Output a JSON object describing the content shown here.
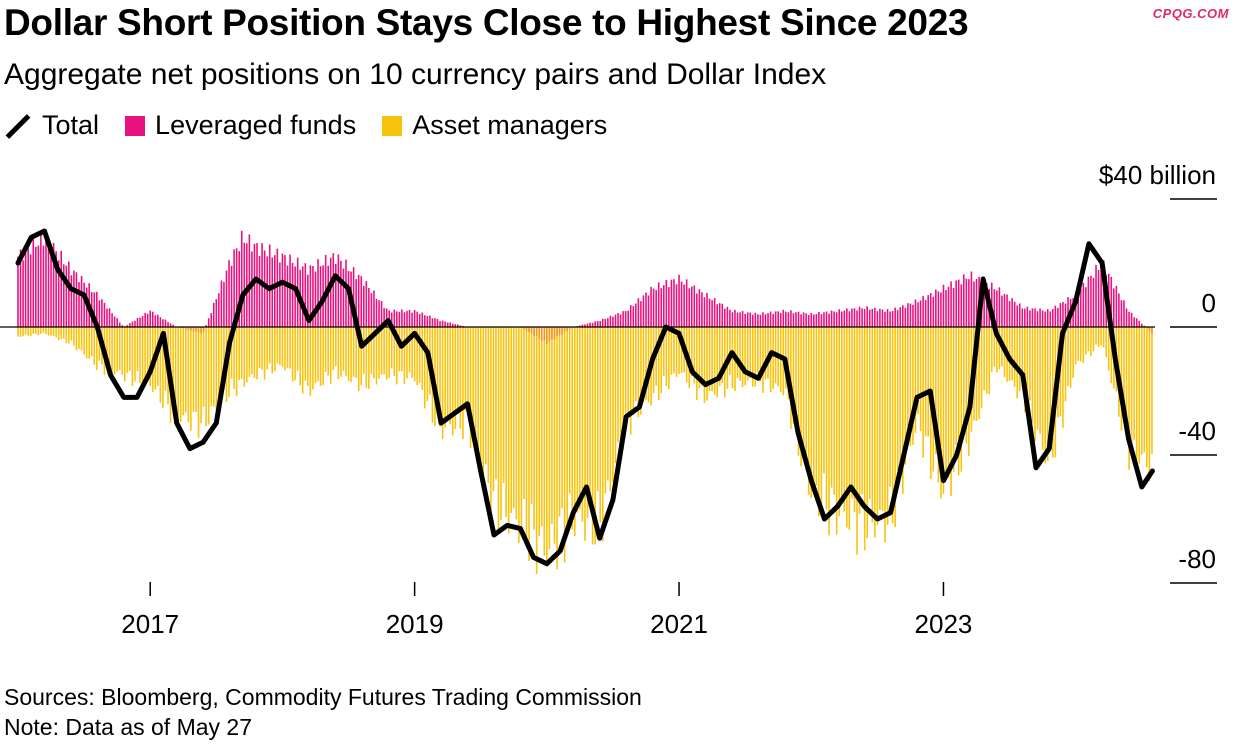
{
  "header": {
    "title": "Dollar Short Position Stays Close to Highest Since 2023",
    "subtitle": "Aggregate net positions on 10 currency pairs and Dollar Index",
    "watermark": "CPQG.COM"
  },
  "legend": {
    "total": "Total",
    "leveraged": "Leveraged funds",
    "asset": "Asset managers"
  },
  "colors": {
    "leveraged": "#e8117f",
    "asset": "#f9c20b",
    "overlap": "#f08c1c",
    "total": "#000000",
    "watermark": "#e0286a"
  },
  "footer": {
    "sources": "Sources: Bloomberg, Commodity Futures Trading Commission",
    "note": "Note: Data as of May 27"
  },
  "chart_data": {
    "type": "area",
    "title": "Dollar Short Position Stays Close to Highest Since 2023",
    "ylabel": "$40 billion",
    "ylim": [
      -88,
      40
    ],
    "yticks": [
      {
        "value": 40,
        "label": "$40 billion"
      },
      {
        "value": 0,
        "label": "0"
      },
      {
        "value": -40,
        "label": "-40"
      },
      {
        "value": -80,
        "label": "-80"
      }
    ],
    "xlim": [
      2016.0,
      2024.6
    ],
    "xticks": [
      {
        "value": 2017,
        "label": "2017"
      },
      {
        "value": 2019,
        "label": "2019"
      },
      {
        "value": 2021,
        "label": "2021"
      },
      {
        "value": 2023,
        "label": "2023"
      }
    ],
    "series": [
      {
        "name": "Total",
        "type": "line",
        "points": [
          [
            2016.0,
            20
          ],
          [
            2016.1,
            28
          ],
          [
            2016.2,
            30
          ],
          [
            2016.3,
            18
          ],
          [
            2016.4,
            12
          ],
          [
            2016.5,
            10
          ],
          [
            2016.6,
            0
          ],
          [
            2016.7,
            -15
          ],
          [
            2016.8,
            -22
          ],
          [
            2016.9,
            -22
          ],
          [
            2017.0,
            -14
          ],
          [
            2017.1,
            -2
          ],
          [
            2017.2,
            -30
          ],
          [
            2017.3,
            -38
          ],
          [
            2017.4,
            -36
          ],
          [
            2017.5,
            -30
          ],
          [
            2017.6,
            -5
          ],
          [
            2017.7,
            10
          ],
          [
            2017.8,
            15
          ],
          [
            2017.9,
            12
          ],
          [
            2018.0,
            14
          ],
          [
            2018.1,
            12
          ],
          [
            2018.2,
            2
          ],
          [
            2018.3,
            8
          ],
          [
            2018.4,
            16
          ],
          [
            2018.5,
            12
          ],
          [
            2018.6,
            -6
          ],
          [
            2018.7,
            -2
          ],
          [
            2018.8,
            2
          ],
          [
            2018.9,
            -6
          ],
          [
            2019.0,
            -2
          ],
          [
            2019.1,
            -8
          ],
          [
            2019.2,
            -30
          ],
          [
            2019.3,
            -27
          ],
          [
            2019.4,
            -24
          ],
          [
            2019.5,
            -45
          ],
          [
            2019.6,
            -65
          ],
          [
            2019.7,
            -62
          ],
          [
            2019.8,
            -63
          ],
          [
            2019.9,
            -72
          ],
          [
            2020.0,
            -74
          ],
          [
            2020.1,
            -70
          ],
          [
            2020.2,
            -58
          ],
          [
            2020.3,
            -50
          ],
          [
            2020.4,
            -66
          ],
          [
            2020.5,
            -54
          ],
          [
            2020.6,
            -28
          ],
          [
            2020.7,
            -25
          ],
          [
            2020.8,
            -10
          ],
          [
            2020.9,
            0
          ],
          [
            2021.0,
            -2
          ],
          [
            2021.1,
            -14
          ],
          [
            2021.2,
            -18
          ],
          [
            2021.3,
            -16
          ],
          [
            2021.4,
            -8
          ],
          [
            2021.5,
            -14
          ],
          [
            2021.6,
            -16
          ],
          [
            2021.7,
            -8
          ],
          [
            2021.8,
            -10
          ],
          [
            2021.9,
            -33
          ],
          [
            2022.0,
            -48
          ],
          [
            2022.1,
            -60
          ],
          [
            2022.2,
            -56
          ],
          [
            2022.3,
            -50
          ],
          [
            2022.4,
            -56
          ],
          [
            2022.5,
            -60
          ],
          [
            2022.6,
            -58
          ],
          [
            2022.7,
            -40
          ],
          [
            2022.8,
            -22
          ],
          [
            2022.9,
            -20
          ],
          [
            2023.0,
            -48
          ],
          [
            2023.1,
            -40
          ],
          [
            2023.2,
            -25
          ],
          [
            2023.3,
            15
          ],
          [
            2023.4,
            -2
          ],
          [
            2023.5,
            -10
          ],
          [
            2023.6,
            -15
          ],
          [
            2023.7,
            -44
          ],
          [
            2023.8,
            -38
          ],
          [
            2023.9,
            -2
          ],
          [
            2024.0,
            8
          ],
          [
            2024.1,
            26
          ],
          [
            2024.2,
            20
          ],
          [
            2024.3,
            -10
          ],
          [
            2024.4,
            -35
          ],
          [
            2024.5,
            -50
          ],
          [
            2024.58,
            -45
          ]
        ]
      },
      {
        "name": "Leveraged funds",
        "type": "bar",
        "points": [
          [
            2016.0,
            22
          ],
          [
            2016.2,
            28
          ],
          [
            2016.4,
            18
          ],
          [
            2016.6,
            10
          ],
          [
            2016.8,
            0
          ],
          [
            2017.0,
            5
          ],
          [
            2017.2,
            0
          ],
          [
            2017.4,
            -2
          ],
          [
            2017.6,
            20
          ],
          [
            2017.7,
            28
          ],
          [
            2017.8,
            25
          ],
          [
            2018.0,
            22
          ],
          [
            2018.2,
            18
          ],
          [
            2018.4,
            22
          ],
          [
            2018.6,
            15
          ],
          [
            2018.8,
            5
          ],
          [
            2019.0,
            5
          ],
          [
            2019.2,
            2
          ],
          [
            2019.4,
            0
          ],
          [
            2019.6,
            0
          ],
          [
            2019.8,
            0
          ],
          [
            2020.0,
            -5
          ],
          [
            2020.2,
            0
          ],
          [
            2020.4,
            2
          ],
          [
            2020.6,
            5
          ],
          [
            2020.8,
            12
          ],
          [
            2021.0,
            15
          ],
          [
            2021.2,
            10
          ],
          [
            2021.4,
            5
          ],
          [
            2021.6,
            4
          ],
          [
            2021.8,
            5
          ],
          [
            2022.0,
            4
          ],
          [
            2022.2,
            5
          ],
          [
            2022.4,
            6
          ],
          [
            2022.6,
            5
          ],
          [
            2022.8,
            8
          ],
          [
            2023.0,
            12
          ],
          [
            2023.2,
            16
          ],
          [
            2023.4,
            12
          ],
          [
            2023.6,
            6
          ],
          [
            2023.8,
            5
          ],
          [
            2024.0,
            10
          ],
          [
            2024.2,
            20
          ],
          [
            2024.4,
            5
          ],
          [
            2024.58,
            -2
          ]
        ]
      },
      {
        "name": "Asset managers",
        "type": "bar",
        "points": [
          [
            2016.0,
            -3
          ],
          [
            2016.2,
            -2
          ],
          [
            2016.4,
            -5
          ],
          [
            2016.6,
            -12
          ],
          [
            2016.8,
            -15
          ],
          [
            2017.0,
            -18
          ],
          [
            2017.2,
            -28
          ],
          [
            2017.4,
            -30
          ],
          [
            2017.6,
            -20
          ],
          [
            2017.8,
            -15
          ],
          [
            2018.0,
            -12
          ],
          [
            2018.2,
            -20
          ],
          [
            2018.4,
            -14
          ],
          [
            2018.6,
            -18
          ],
          [
            2018.8,
            -15
          ],
          [
            2019.0,
            -16
          ],
          [
            2019.2,
            -32
          ],
          [
            2019.4,
            -30
          ],
          [
            2019.6,
            -55
          ],
          [
            2019.8,
            -62
          ],
          [
            2020.0,
            -70
          ],
          [
            2020.2,
            -60
          ],
          [
            2020.4,
            -62
          ],
          [
            2020.6,
            -30
          ],
          [
            2020.8,
            -22
          ],
          [
            2021.0,
            -14
          ],
          [
            2021.2,
            -22
          ],
          [
            2021.4,
            -18
          ],
          [
            2021.6,
            -17
          ],
          [
            2021.8,
            -20
          ],
          [
            2022.0,
            -52
          ],
          [
            2022.2,
            -58
          ],
          [
            2022.4,
            -62
          ],
          [
            2022.6,
            -60
          ],
          [
            2022.8,
            -30
          ],
          [
            2023.0,
            -52
          ],
          [
            2023.2,
            -35
          ],
          [
            2023.4,
            -12
          ],
          [
            2023.6,
            -22
          ],
          [
            2023.8,
            -43
          ],
          [
            2024.0,
            -12
          ],
          [
            2024.2,
            -5
          ],
          [
            2024.4,
            -38
          ],
          [
            2024.58,
            -44
          ]
        ]
      }
    ]
  }
}
